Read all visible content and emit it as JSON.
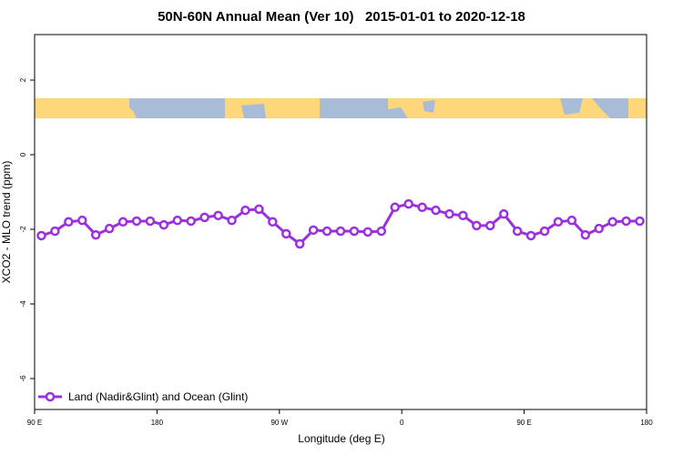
{
  "chart_data": {
    "type": "line",
    "title": "50N-60N Annual Mean (Ver 10)   2015-01-01 to 2020-12-18",
    "x_label": "Longitude (deg E)",
    "y_label": "XCO2 - MLO trend (ppm)",
    "x": [
      95,
      105,
      115,
      125,
      135,
      145,
      155,
      165,
      175,
      185,
      195,
      205,
      215,
      225,
      235,
      245,
      255,
      265,
      275,
      285,
      295,
      305,
      315,
      325,
      335,
      345,
      355,
      365,
      375,
      385,
      395,
      405,
      415,
      425,
      435,
      445,
      455,
      465,
      475,
      485,
      495,
      505,
      515,
      525,
      535
    ],
    "series": [
      {
        "name": "Land (Nadir&Glint) and Ocean (Glint)",
        "color": "#9b30e0",
        "values": [
          -2.17,
          -2.05,
          -1.8,
          -1.76,
          -2.15,
          -1.98,
          -1.8,
          -1.78,
          -1.78,
          -1.88,
          -1.76,
          -1.78,
          -1.68,
          -1.63,
          -1.76,
          -1.49,
          -1.46,
          -1.8,
          -2.12,
          -2.39,
          -2.02,
          -2.05,
          -2.05,
          -2.05,
          -2.07,
          -2.05,
          -1.41,
          -1.32,
          -1.41,
          -1.49,
          -1.59,
          -1.63,
          -1.9,
          -1.9,
          -1.59,
          -2.05,
          -2.17,
          -2.05,
          -1.8,
          -1.76,
          -2.15,
          -1.98,
          -1.8,
          -1.78,
          -1.78
        ]
      }
    ],
    "xlim": [
      90,
      540
    ],
    "xticks": [
      {
        "value": 90,
        "label": "90 E"
      },
      {
        "value": 180,
        "label": "180"
      },
      {
        "value": 270,
        "label": "90 W"
      },
      {
        "value": 360,
        "label": "0"
      },
      {
        "value": 450,
        "label": "90 E"
      },
      {
        "value": 540,
        "label": "180"
      }
    ],
    "ylim": [
      -6.83,
      3.22
    ],
    "yticks": [
      -6,
      -4,
      -2,
      0,
      2
    ],
    "legend": "bottom-left"
  }
}
